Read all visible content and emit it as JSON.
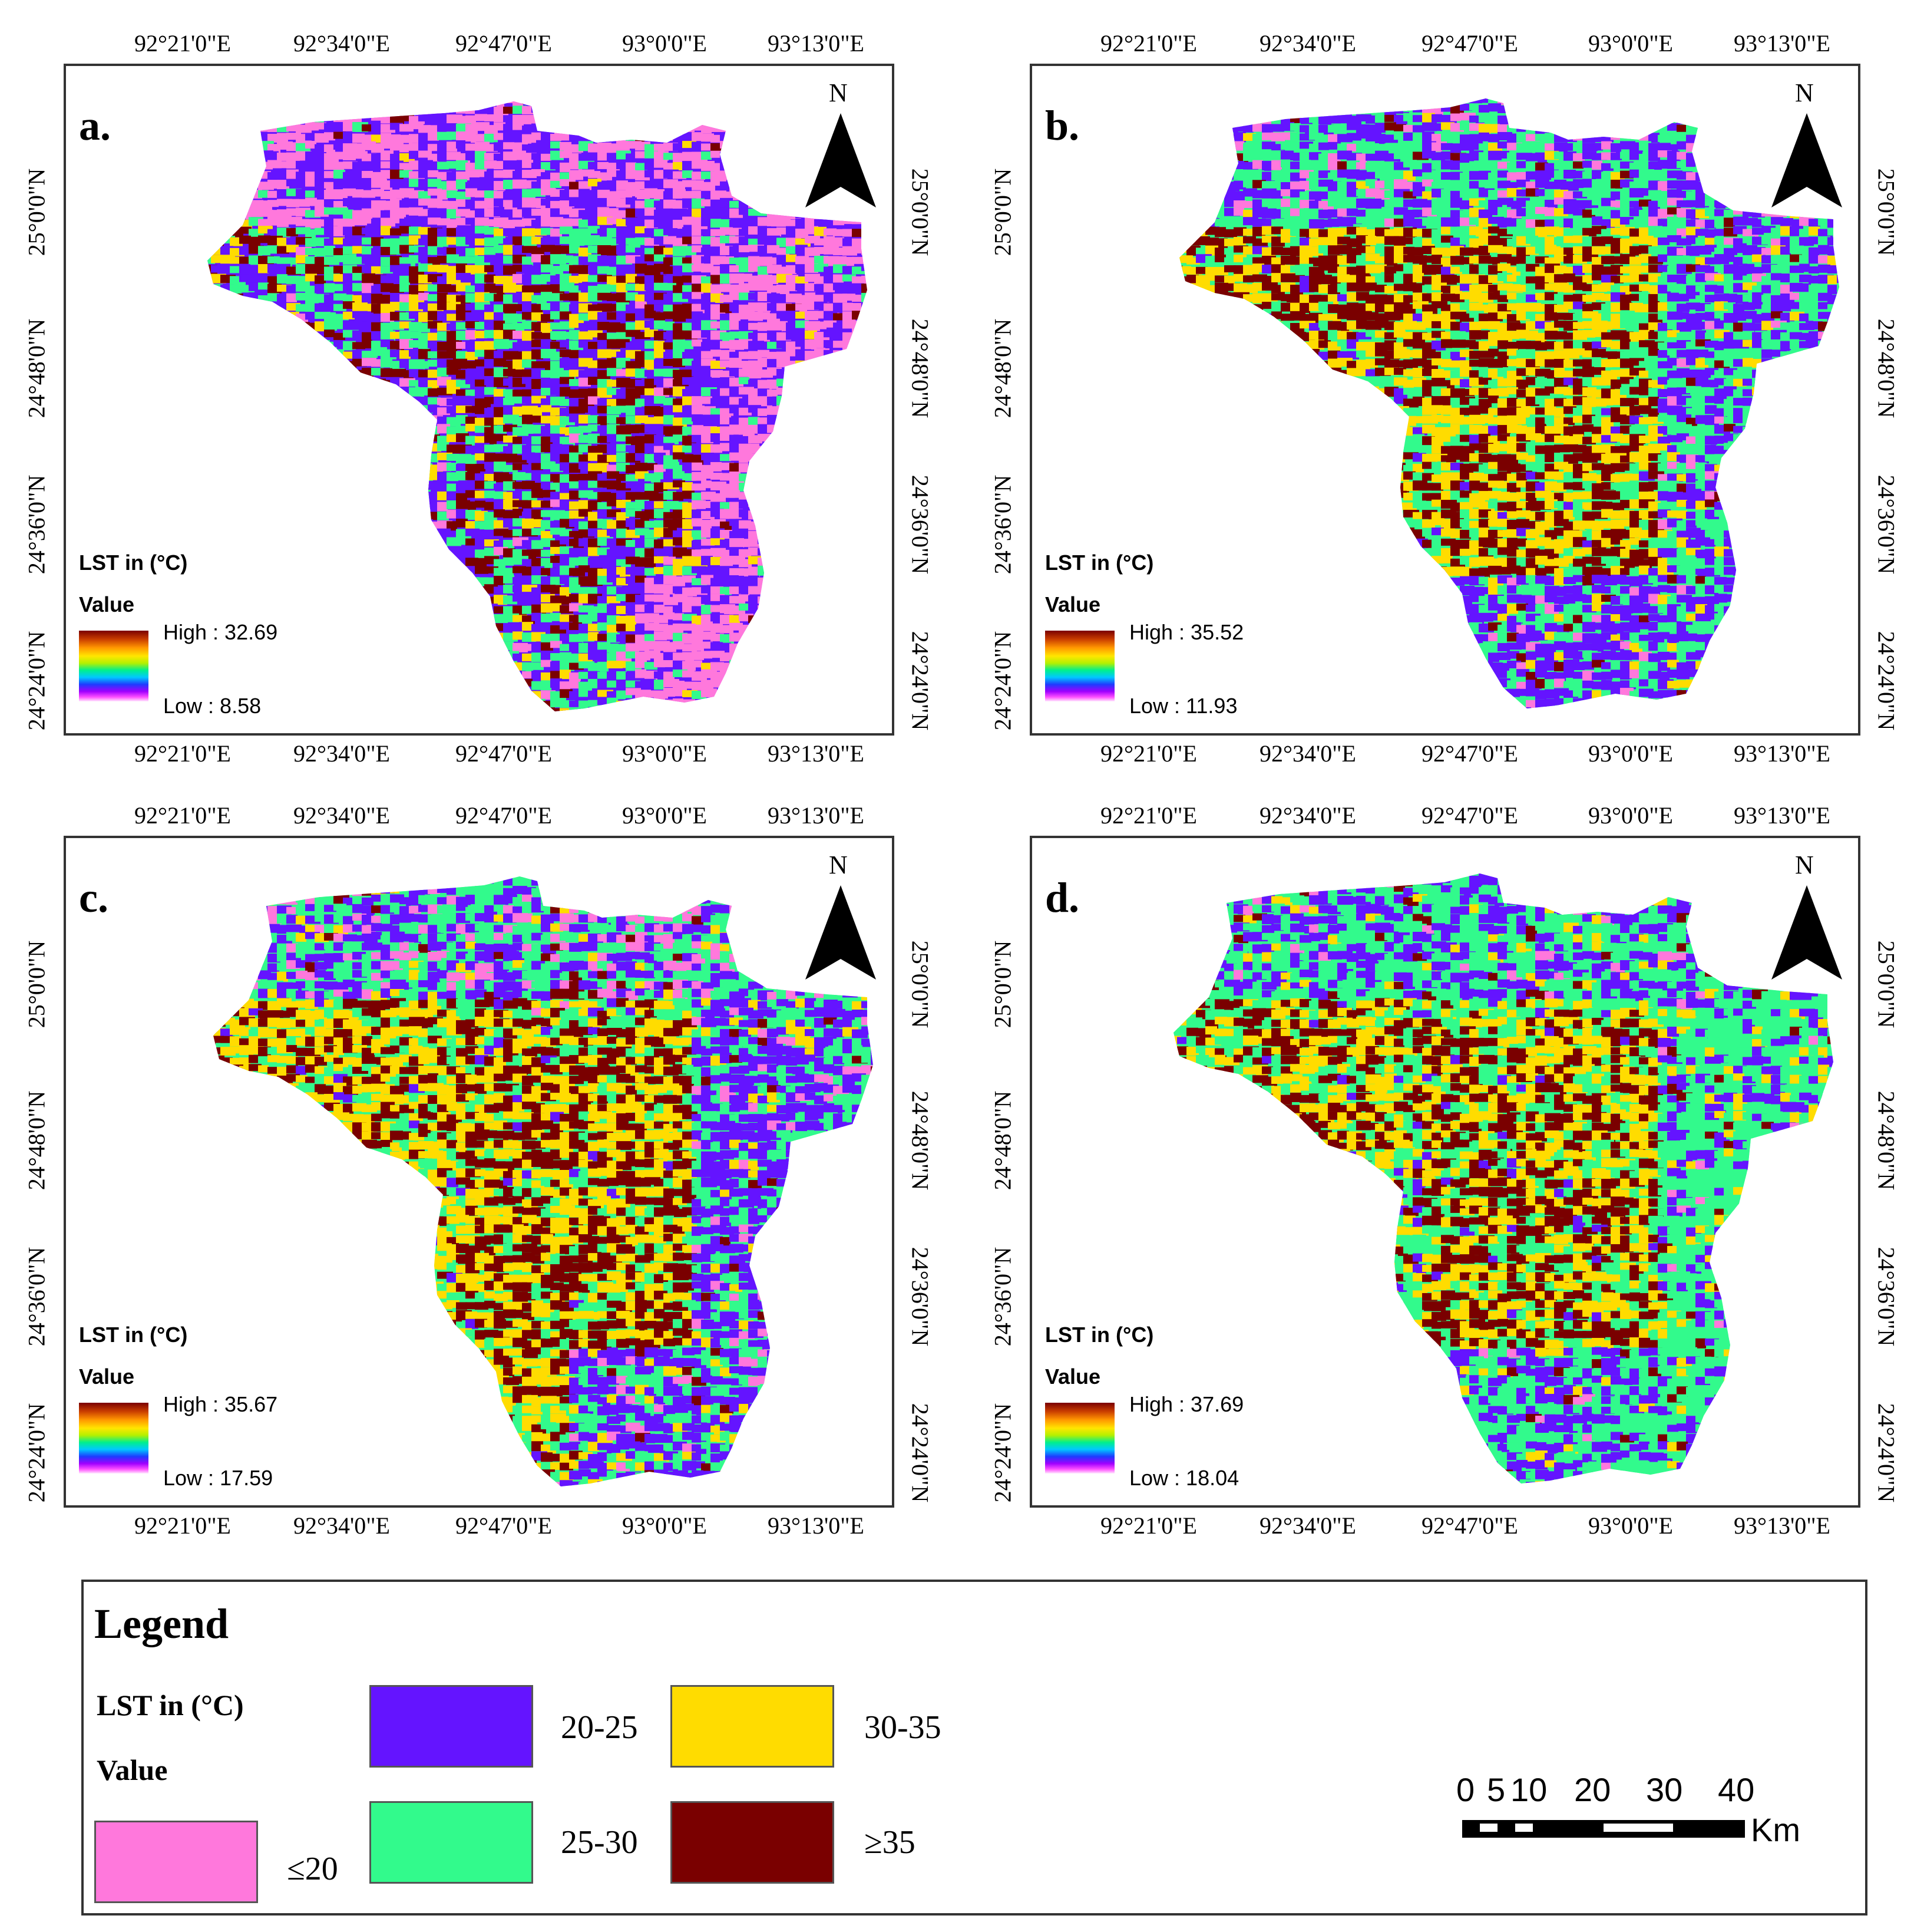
{
  "figure": {
    "panels": [
      {
        "label": "a.",
        "north": "N",
        "legend_title": "LST in (°C)",
        "value_label": "Value",
        "high": "High : 32.69",
        "low": "Low : 8.58"
      },
      {
        "label": "b.",
        "north": "N",
        "legend_title": "LST in (°C)",
        "value_label": "Value",
        "high": "High : 35.52",
        "low": "Low : 11.93"
      },
      {
        "label": "c.",
        "north": "N",
        "legend_title": "LST in (°C)",
        "value_label": "Value",
        "high": "High : 35.67",
        "low": "Low : 17.59"
      },
      {
        "label": "d.",
        "north": "N",
        "legend_title": "LST in (°C)",
        "value_label": "Value",
        "high": "High : 37.69",
        "low": "Low : 18.04"
      }
    ],
    "lon_ticks": [
      "92°21'0\"E",
      "92°34'0\"E",
      "92°47'0\"E",
      "93°0'0\"E",
      "93°13'0\"E"
    ],
    "lat_ticks": [
      "25°0'0\"N",
      "24°48'0\"N",
      "24°36'0\"N",
      "24°24'0\"N"
    ]
  },
  "legend": {
    "title": "Legend",
    "lst_label": "LST in (°C)",
    "value_label": "Value",
    "classes": [
      {
        "label": "≤20",
        "color": "#ff78dc"
      },
      {
        "label": "20-25",
        "color": "#6414ff"
      },
      {
        "label": "25-30",
        "color": "#32fa8c"
      },
      {
        "label": "30-35",
        "color": "#ffdc00"
      },
      {
        "label": "≥35",
        "color": "#7a0000"
      }
    ]
  },
  "scalebar": {
    "ticks": [
      "0",
      "5",
      "10",
      "20",
      "30",
      "40"
    ],
    "unit": "Km"
  }
}
